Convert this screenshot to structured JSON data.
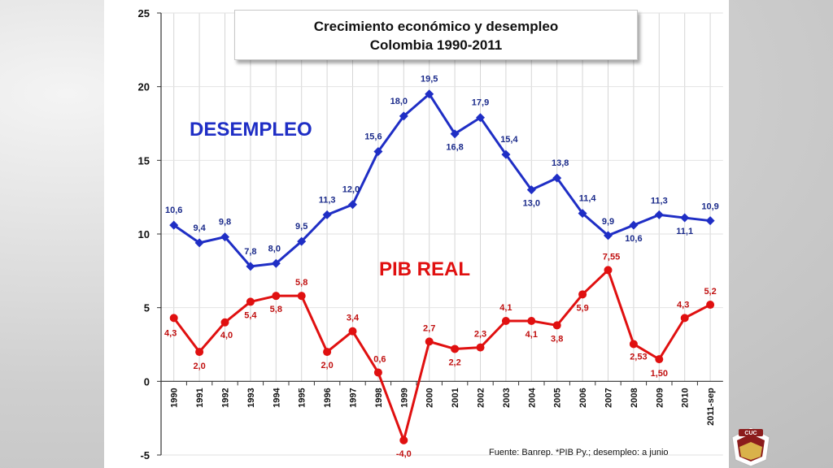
{
  "chart_data": {
    "type": "line",
    "title": "Crecimiento económico y desempleo",
    "subtitle": "Colombia 1990-2011",
    "categories": [
      "1990",
      "1991",
      "1992",
      "1993",
      "1994",
      "1995",
      "1996",
      "1997",
      "1998",
      "1999",
      "2000",
      "2001",
      "2002",
      "2003",
      "2004",
      "2005",
      "2006",
      "2007",
      "2008",
      "2009",
      "2010",
      "2011-sep"
    ],
    "ylim": [
      -5,
      25
    ],
    "yticks": [
      "-5",
      "0",
      "5",
      "10",
      "15",
      "20",
      "25"
    ],
    "grid": true,
    "series": [
      {
        "name": "DESEMPLEO",
        "color": "#1f2ec5",
        "marker": "diamond",
        "values": [
          10.6,
          9.4,
          9.8,
          7.8,
          8.0,
          9.5,
          11.3,
          12.0,
          15.6,
          18.0,
          19.5,
          16.8,
          17.9,
          15.4,
          13.0,
          13.8,
          11.4,
          9.9,
          10.6,
          11.3,
          11.1,
          10.9
        ],
        "labels": [
          "10,6",
          "9,4",
          "9,8",
          "7,8",
          "8,0",
          "9,5",
          "11,3",
          "12,0",
          "15,6",
          "18,0",
          "19,5",
          "16,8",
          "17,9",
          "15,4",
          "13,0",
          "13,8",
          "11,4",
          "9,9",
          "10,6",
          "11,3",
          "11,1",
          "10,9"
        ]
      },
      {
        "name": "PIB REAL",
        "color": "#e01010",
        "marker": "circle",
        "values": [
          4.3,
          2.0,
          4.0,
          5.4,
          5.8,
          5.8,
          2.0,
          3.4,
          0.6,
          -4.0,
          2.7,
          2.2,
          2.3,
          4.1,
          4.1,
          3.8,
          5.9,
          7.55,
          2.53,
          1.5,
          4.3,
          5.2
        ],
        "labels": [
          "4,3",
          "2,0",
          "4,0",
          "5,4",
          "5,8",
          "5,8",
          "2,0",
          "3,4",
          "0,6",
          "-4,0",
          "2,7",
          "2,2",
          "2,3",
          "4,1",
          "4,1",
          "3,8",
          "5,9",
          "7,55",
          "2,53",
          "1,50",
          "4,3",
          "5,2"
        ]
      }
    ],
    "source": "Fuente: Banrep. *PIB Py.; desempleo: a junio"
  },
  "logo_text": "CUC"
}
